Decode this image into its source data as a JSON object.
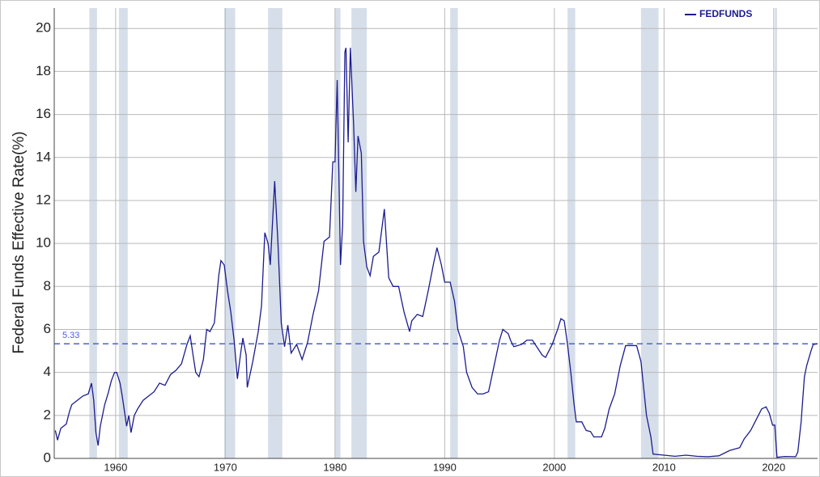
{
  "chart_data": {
    "type": "line",
    "y_label": "Federal Funds Effective Rate(%)",
    "xlim": [
      1954.4,
      2024.0
    ],
    "xticks": [
      1960,
      1970,
      1980,
      1990,
      2000,
      2010,
      2020
    ],
    "ylim": [
      0,
      20.95
    ],
    "yticks": [
      0,
      2,
      4,
      6,
      8,
      10,
      12,
      14,
      16,
      18,
      20
    ],
    "grid": true,
    "legend": "top-right",
    "recession_color": "#d6dee9",
    "recessions": [
      [
        1957.6,
        1958.3
      ],
      [
        1960.3,
        1961.1
      ],
      [
        1969.9,
        1970.9
      ],
      [
        1973.9,
        1975.2
      ],
      [
        1980.0,
        1980.5
      ],
      [
        1981.5,
        1982.9
      ],
      [
        1990.5,
        1991.2
      ],
      [
        2001.2,
        2001.9
      ],
      [
        2007.9,
        2009.5
      ],
      [
        2020.1,
        2020.3
      ]
    ],
    "reference_line": {
      "value": 5.33,
      "color": "#4b5fd8"
    },
    "x": [
      1954.5,
      1954.7,
      1955.0,
      1955.5,
      1955.8,
      1956.0,
      1956.5,
      1957.0,
      1957.5,
      1957.8,
      1958.0,
      1958.2,
      1958.4,
      1958.6,
      1958.8,
      1959.0,
      1959.3,
      1959.6,
      1959.9,
      1960.1,
      1960.4,
      1960.6,
      1960.8,
      1961.0,
      1961.2,
      1961.4,
      1961.7,
      1962.0,
      1962.5,
      1963.0,
      1963.5,
      1964.0,
      1964.5,
      1965.0,
      1965.5,
      1966.0,
      1966.5,
      1966.8,
      1967.0,
      1967.3,
      1967.6,
      1968.0,
      1968.3,
      1968.6,
      1969.0,
      1969.4,
      1969.6,
      1969.9,
      1970.2,
      1970.5,
      1970.8,
      1971.1,
      1971.4,
      1971.6,
      1971.9,
      1972.0,
      1972.5,
      1973.0,
      1973.3,
      1973.6,
      1973.9,
      1974.1,
      1974.5,
      1974.8,
      1975.1,
      1975.4,
      1975.7,
      1976.0,
      1976.5,
      1977.0,
      1977.5,
      1978.0,
      1978.5,
      1979.0,
      1979.5,
      1979.8,
      1980.0,
      1980.2,
      1980.5,
      1980.7,
      1980.9,
      1981.0,
      1981.2,
      1981.4,
      1981.7,
      1981.9,
      1982.1,
      1982.4,
      1982.6,
      1982.9,
      1983.2,
      1983.5,
      1984.0,
      1984.5,
      1984.9,
      1985.3,
      1985.8,
      1986.3,
      1986.8,
      1987.0,
      1987.5,
      1988.0,
      1988.5,
      1989.0,
      1989.3,
      1989.7,
      1990.0,
      1990.5,
      1990.9,
      1991.2,
      1991.7,
      1992.0,
      1992.5,
      1993.0,
      1993.5,
      1994.0,
      1994.5,
      1995.0,
      1995.3,
      1995.8,
      1996.0,
      1996.3,
      1997.0,
      1997.5,
      1998.0,
      1998.9,
      1999.2,
      1999.8,
      2000.3,
      2000.6,
      2000.9,
      2001.2,
      2001.5,
      2001.8,
      2002.0,
      2002.5,
      2002.9,
      2003.3,
      2003.6,
      2004.3,
      2004.6,
      2005.0,
      2005.5,
      2006.0,
      2006.5,
      2007.5,
      2007.9,
      2008.2,
      2008.4,
      2008.8,
      2009.0,
      2010.0,
      2011.0,
      2012.0,
      2013.0,
      2014.0,
      2015.0,
      2016.0,
      2016.9,
      2017.3,
      2017.9,
      2018.3,
      2018.9,
      2019.3,
      2019.6,
      2019.9,
      2020.1,
      2020.3,
      2021.0,
      2022.0,
      2022.2,
      2022.5,
      2022.8,
      2023.0,
      2023.4,
      2023.6,
      2024.0
    ],
    "series": [
      {
        "name": "FEDFUNDS",
        "color": "#1c1c8f",
        "values": [
          1.3,
          0.85,
          1.4,
          1.6,
          2.2,
          2.5,
          2.7,
          2.9,
          3.0,
          3.5,
          2.7,
          1.2,
          0.6,
          1.5,
          2.0,
          2.5,
          3.0,
          3.6,
          4.0,
          4.0,
          3.5,
          2.9,
          2.2,
          1.5,
          2.0,
          1.2,
          2.0,
          2.3,
          2.7,
          2.9,
          3.1,
          3.5,
          3.4,
          3.9,
          4.1,
          4.4,
          5.3,
          5.7,
          5.0,
          4.0,
          3.8,
          4.6,
          6.0,
          5.9,
          6.3,
          8.5,
          9.2,
          9.0,
          7.8,
          6.8,
          5.5,
          3.7,
          4.9,
          5.6,
          4.8,
          3.3,
          4.5,
          5.9,
          7.1,
          10.5,
          10.0,
          9.0,
          12.9,
          10.0,
          6.3,
          5.2,
          6.2,
          4.9,
          5.3,
          4.6,
          5.4,
          6.7,
          7.8,
          10.1,
          10.3,
          13.8,
          13.8,
          17.6,
          9.0,
          10.9,
          18.9,
          19.1,
          14.7,
          19.1,
          15.5,
          12.4,
          15.0,
          14.2,
          10.1,
          8.9,
          8.5,
          9.4,
          9.6,
          11.6,
          8.4,
          8.0,
          8.0,
          6.8,
          5.9,
          6.4,
          6.7,
          6.6,
          7.8,
          9.1,
          9.8,
          9.0,
          8.2,
          8.2,
          7.3,
          6.0,
          5.2,
          4.0,
          3.3,
          3.0,
          3.0,
          3.1,
          4.3,
          5.5,
          6.0,
          5.8,
          5.5,
          5.2,
          5.3,
          5.5,
          5.5,
          4.8,
          4.7,
          5.3,
          6.0,
          6.5,
          6.4,
          5.3,
          4.0,
          2.5,
          1.7,
          1.7,
          1.3,
          1.25,
          1.0,
          1.0,
          1.4,
          2.3,
          3.0,
          4.3,
          5.25,
          5.25,
          4.5,
          3.0,
          2.0,
          1.0,
          0.2,
          0.15,
          0.1,
          0.15,
          0.1,
          0.08,
          0.12,
          0.37,
          0.5,
          0.9,
          1.3,
          1.7,
          2.3,
          2.4,
          2.1,
          1.55,
          1.55,
          0.05,
          0.09,
          0.08,
          0.3,
          1.7,
          3.8,
          4.3,
          5.0,
          5.3,
          5.33
        ]
      }
    ]
  }
}
